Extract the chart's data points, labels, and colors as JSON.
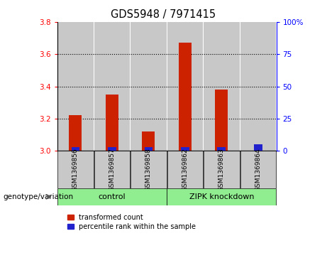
{
  "title": "GDS5948 / 7971415",
  "samples": [
    "GSM1369856",
    "GSM1369857",
    "GSM1369858",
    "GSM1369862",
    "GSM1369863",
    "GSM1369864"
  ],
  "red_heights": [
    0.22,
    0.35,
    0.12,
    0.67,
    0.38,
    0.0
  ],
  "blue_pcts": [
    3,
    3,
    3,
    3,
    3,
    5
  ],
  "ylim_left": [
    3.0,
    3.8
  ],
  "ylim_right": [
    0,
    100
  ],
  "yticks_left": [
    3.0,
    3.2,
    3.4,
    3.6,
    3.8
  ],
  "yticks_right": [
    0,
    25,
    50,
    75,
    100
  ],
  "ytick_right_labels": [
    "0",
    "25",
    "50",
    "75",
    "100%"
  ],
  "grid_lines": [
    3.2,
    3.4,
    3.6
  ],
  "legend_red": "transformed count",
  "legend_blue": "percentile rank within the sample",
  "red_color": "#CC2200",
  "blue_color": "#2222CC",
  "bar_bg_color": "#C8C8C8",
  "group_color": "#90EE90",
  "bar_width": 0.35,
  "bg_bar_width": 0.98,
  "base_value": 3.0,
  "control_label": "control",
  "zipk_label": "ZIPK knockdown",
  "genotype_label": "genotype/variation"
}
